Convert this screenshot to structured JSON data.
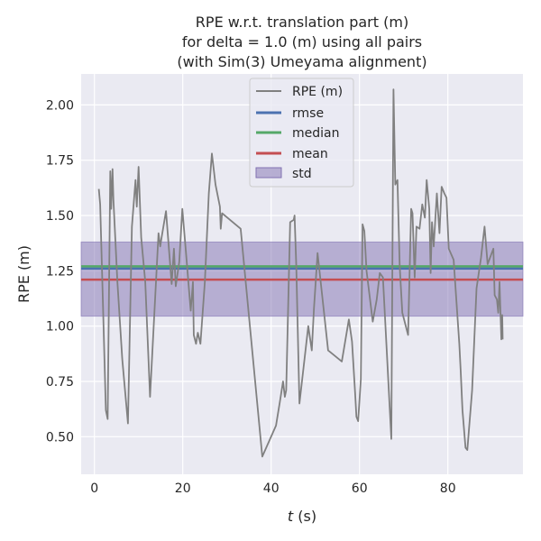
{
  "chart_data": {
    "type": "line",
    "title": [
      "RPE w.r.t. translation part (m)",
      "for delta = 1.0 (m) using all pairs",
      "(with Sim(3) Umeyama alignment)"
    ],
    "xlabel_var": "t",
    "xlabel_unit": " (s)",
    "ylabel": "RPE (m)",
    "xlim": [
      -3,
      97
    ],
    "ylim": [
      0.33,
      2.14
    ],
    "xticks": [
      0,
      20,
      40,
      60,
      80
    ],
    "yticks": [
      0.5,
      0.75,
      1.0,
      1.25,
      1.5,
      1.75,
      2.0
    ],
    "yticks_labels": [
      "0.50",
      "0.75",
      "1.00",
      "1.25",
      "1.50",
      "1.75",
      "2.00"
    ],
    "grid": true,
    "legend_position": "top-center",
    "legend": [
      "RPE (m)",
      "rmse",
      "median",
      "mean",
      "std"
    ],
    "colors": {
      "rpe": "#808080",
      "rmse": "#4c72b0",
      "median": "#55a868",
      "mean": "#c44e52",
      "std": "#8172b2",
      "background": "#eaeaf2",
      "grid": "#ffffff"
    },
    "stats": {
      "rmse": 1.26,
      "median": 1.27,
      "mean": 1.21,
      "std_low": 1.045,
      "std_high": 1.38
    },
    "series": [
      {
        "name": "RPE (m)",
        "x": [
          1.0,
          1.3,
          1.8,
          2.6,
          3.0,
          3.6,
          3.8,
          4.1,
          4.3,
          5.2,
          6.3,
          7.6,
          8.5,
          9.3,
          9.6,
          10.0,
          10.6,
          11.5,
          12.6,
          14.5,
          14.9,
          15.2,
          16.2,
          17.5,
          18.0,
          18.4,
          19.2,
          19.9,
          20.7,
          21.8,
          22.3,
          22.5,
          23.0,
          23.4,
          24.0,
          25.0,
          25.9,
          26.6,
          27.4,
          28.4,
          28.6,
          28.9,
          33.1,
          38.0,
          41.1,
          42.0,
          42.7,
          43.1,
          43.4,
          44.3,
          45.1,
          45.3,
          45.7,
          46.4,
          48.4,
          49.2,
          49.7,
          50.5,
          52.9,
          56.0,
          57.6,
          58.3,
          59.0,
          59.3,
          59.7,
          60.3,
          60.7,
          61.1,
          61.6,
          63.0,
          63.9,
          64.6,
          65.3,
          67.2,
          67.7,
          68.1,
          68.6,
          69.1,
          69.7,
          71.0,
          71.7,
          72.0,
          72.5,
          72.9,
          73.6,
          74.2,
          74.8,
          75.2,
          75.8,
          76.1,
          76.4,
          76.8,
          77.5,
          78.1,
          78.6,
          79.2,
          79.7,
          80.2,
          81.3,
          82.6,
          82.9,
          83.3,
          84.0,
          84.4,
          85.5,
          86.5,
          87.5,
          88.3,
          89.0,
          90.3,
          90.6,
          91.1,
          91.4,
          91.7,
          92.1,
          92.3,
          92.4
        ],
        "y": [
          1.62,
          1.55,
          1.2,
          0.62,
          0.58,
          1.7,
          1.53,
          1.71,
          1.57,
          1.2,
          0.85,
          0.56,
          1.45,
          1.66,
          1.54,
          1.72,
          1.4,
          1.2,
          0.68,
          1.42,
          1.36,
          1.4,
          1.52,
          1.19,
          1.35,
          1.18,
          1.29,
          1.53,
          1.34,
          1.07,
          1.2,
          0.96,
          0.92,
          0.97,
          0.92,
          1.2,
          1.6,
          1.78,
          1.64,
          1.54,
          1.44,
          1.51,
          1.44,
          0.41,
          0.55,
          0.66,
          0.75,
          0.68,
          0.71,
          1.47,
          1.48,
          1.5,
          1.27,
          0.65,
          1.0,
          0.89,
          1.08,
          1.33,
          0.89,
          0.84,
          1.03,
          0.93,
          0.7,
          0.59,
          0.57,
          0.76,
          1.46,
          1.43,
          1.25,
          1.02,
          1.12,
          1.24,
          1.22,
          0.49,
          2.07,
          1.64,
          1.66,
          1.27,
          1.06,
          0.96,
          1.53,
          1.51,
          1.22,
          1.45,
          1.44,
          1.55,
          1.49,
          1.66,
          1.53,
          1.24,
          1.47,
          1.36,
          1.6,
          1.42,
          1.63,
          1.6,
          1.58,
          1.35,
          1.3,
          0.92,
          0.8,
          0.62,
          0.45,
          0.44,
          0.71,
          1.17,
          1.31,
          1.45,
          1.28,
          1.35,
          1.14,
          1.12,
          1.06,
          1.2,
          0.94,
          1.05,
          0.94
        ]
      }
    ]
  }
}
